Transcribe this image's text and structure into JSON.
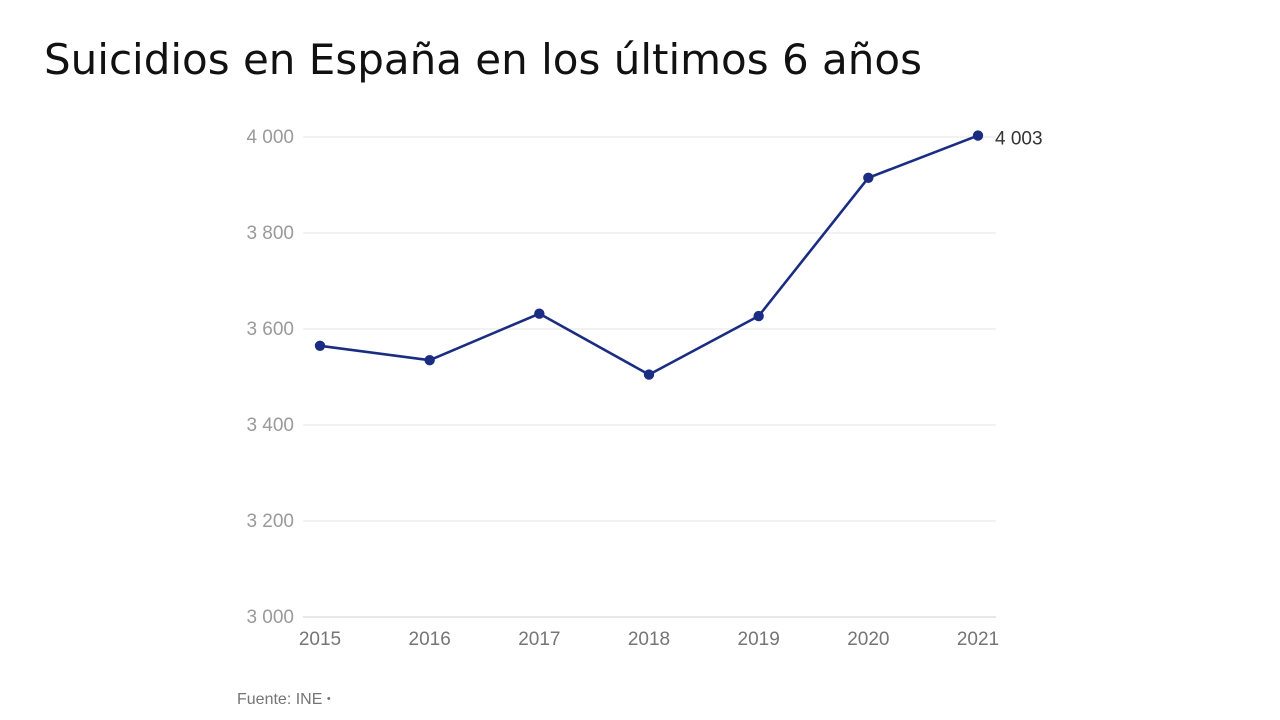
{
  "title": "Suicidios en España en los últimos 6 años",
  "source": "Fuente: INE",
  "source_separator": "•",
  "chart_data": {
    "type": "line",
    "title": "Suicidios en España en los últimos 6 años",
    "xlabel": "",
    "ylabel": "",
    "categories": [
      "2015",
      "2016",
      "2017",
      "2018",
      "2019",
      "2020",
      "2021"
    ],
    "series": [
      {
        "name": "Suicidios",
        "values": [
          3565,
          3535,
          3632,
          3505,
          3627,
          3915,
          4003
        ],
        "color": "#1a2d82"
      }
    ],
    "ylim": [
      3000,
      4000
    ],
    "yticks": [
      3000,
      3200,
      3400,
      3600,
      3800,
      4000
    ],
    "ytick_labels": [
      "3 000",
      "3 200",
      "3 400",
      "3 600",
      "3 800",
      "4 000"
    ],
    "grid": true,
    "data_labels": [
      {
        "index": 6,
        "text": "4 003"
      }
    ]
  }
}
